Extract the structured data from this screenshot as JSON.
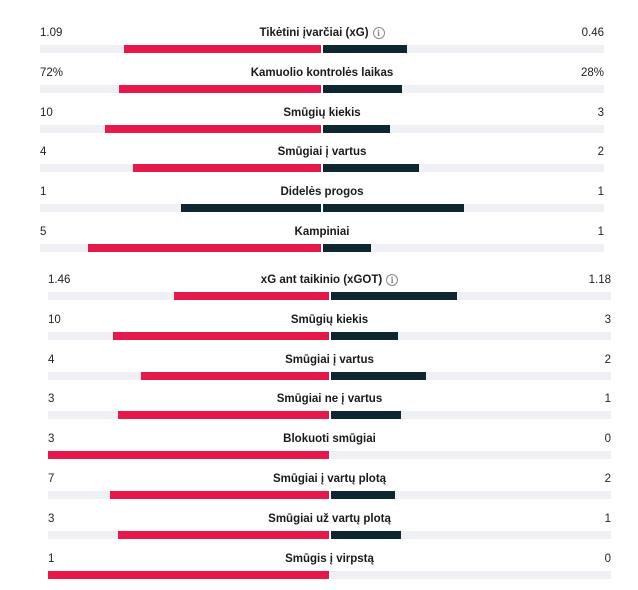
{
  "colors": {
    "home": "#e8184a",
    "away": "#0e2630",
    "track": "#eef0f3"
  },
  "sections": [
    {
      "name": "main-stats",
      "stats": [
        {
          "label": "Tikėtini įvarčiai (xG)",
          "home": "1.09",
          "away": "0.46",
          "home_share": 0.7,
          "away_share": 0.3,
          "home_color": "#e8184a",
          "away_color": "#0e2630",
          "info": true
        },
        {
          "label": "Kamuolio kontrolės laikas",
          "home": "72%",
          "away": "28%",
          "home_share": 0.72,
          "away_share": 0.28,
          "home_color": "#e8184a",
          "away_color": "#0e2630",
          "info": false
        },
        {
          "label": "Smūgių kiekis",
          "home": "10",
          "away": "3",
          "home_share": 0.77,
          "away_share": 0.24,
          "home_color": "#e8184a",
          "away_color": "#0e2630",
          "info": false
        },
        {
          "label": "Smūgiai į vartus",
          "home": "4",
          "away": "2",
          "home_share": 0.67,
          "away_share": 0.34,
          "home_color": "#e8184a",
          "away_color": "#0e2630",
          "info": false
        },
        {
          "label": "Didelės progos",
          "home": "1",
          "away": "1",
          "home_share": 0.5,
          "away_share": 0.5,
          "home_color": "#0e2630",
          "away_color": "#0e2630",
          "info": false
        },
        {
          "label": "Kampiniai",
          "home": "5",
          "away": "1",
          "home_share": 0.83,
          "away_share": 0.17,
          "home_color": "#e8184a",
          "away_color": "#0e2630",
          "info": false
        }
      ]
    },
    {
      "name": "shots-stats",
      "stats": [
        {
          "label": "xG ant taikinio (xGOT)",
          "home": "1.46",
          "away": "1.18",
          "home_share": 0.55,
          "away_share": 0.45,
          "home_color": "#e8184a",
          "away_color": "#0e2630",
          "info": true
        },
        {
          "label": "Smūgių kiekis",
          "home": "10",
          "away": "3",
          "home_share": 0.77,
          "away_share": 0.24,
          "home_color": "#e8184a",
          "away_color": "#0e2630",
          "info": false
        },
        {
          "label": "Smūgiai į vartus",
          "home": "4",
          "away": "2",
          "home_share": 0.67,
          "away_share": 0.34,
          "home_color": "#e8184a",
          "away_color": "#0e2630",
          "info": false
        },
        {
          "label": "Smūgiai ne į vartus",
          "home": "3",
          "away": "1",
          "home_share": 0.75,
          "away_share": 0.25,
          "home_color": "#e8184a",
          "away_color": "#0e2630",
          "info": false
        },
        {
          "label": "Blokuoti smūgiai",
          "home": "3",
          "away": "0",
          "home_share": 1.0,
          "away_share": 0.0,
          "home_color": "#e8184a",
          "away_color": "#0e2630",
          "info": false
        },
        {
          "label": "Smūgiai į vartų plotą",
          "home": "7",
          "away": "2",
          "home_share": 0.78,
          "away_share": 0.23,
          "home_color": "#e8184a",
          "away_color": "#0e2630",
          "info": false
        },
        {
          "label": "Smūgiai už vartų plotą",
          "home": "3",
          "away": "1",
          "home_share": 0.75,
          "away_share": 0.25,
          "home_color": "#e8184a",
          "away_color": "#0e2630",
          "info": false
        },
        {
          "label": "Smūgis į virpstą",
          "home": "1",
          "away": "0",
          "home_share": 1.0,
          "away_share": 0.0,
          "home_color": "#e8184a",
          "away_color": "#0e2630",
          "info": false
        }
      ]
    }
  ]
}
